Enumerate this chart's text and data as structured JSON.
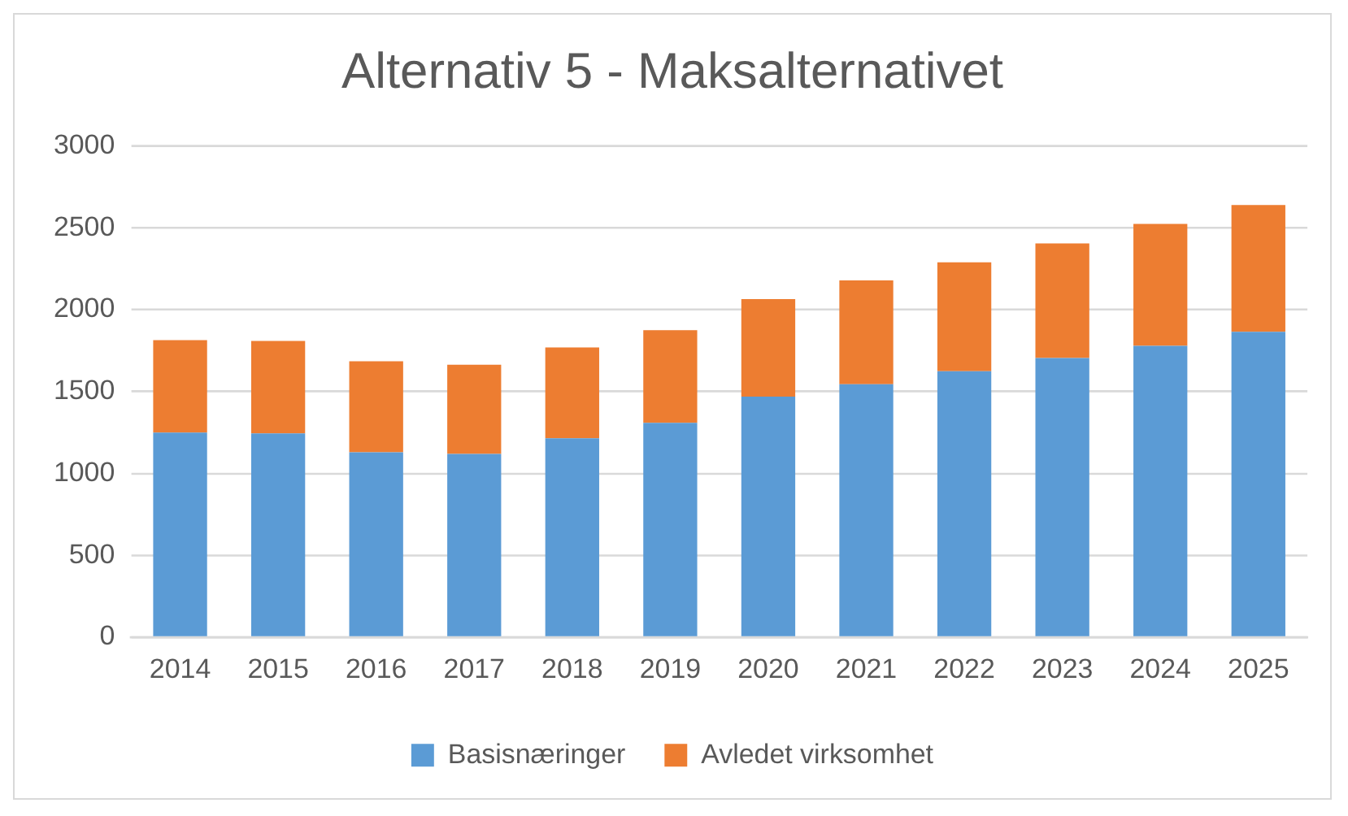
{
  "chart_data": {
    "type": "bar",
    "title": "Alternativ 5 - Maksalternativet",
    "categories": [
      "2014",
      "2015",
      "2016",
      "2017",
      "2018",
      "2019",
      "2020",
      "2021",
      "2022",
      "2023",
      "2024",
      "2025"
    ],
    "series": [
      {
        "name": "Basisnæringer",
        "color": "#5b9bd5",
        "values": [
          1250,
          1245,
          1130,
          1120,
          1215,
          1310,
          1470,
          1545,
          1625,
          1705,
          1780,
          1865
        ]
      },
      {
        "name": "Avledet virksomhet",
        "color": "#ed7d31",
        "values": [
          565,
          565,
          555,
          545,
          555,
          565,
          595,
          635,
          665,
          700,
          745,
          775
        ]
      }
    ],
    "stacked": true,
    "ylim": [
      0,
      3000
    ],
    "yticks": [
      0,
      500,
      1000,
      1500,
      2000,
      2500,
      3000
    ],
    "grid": "y",
    "legend": "bottom"
  }
}
